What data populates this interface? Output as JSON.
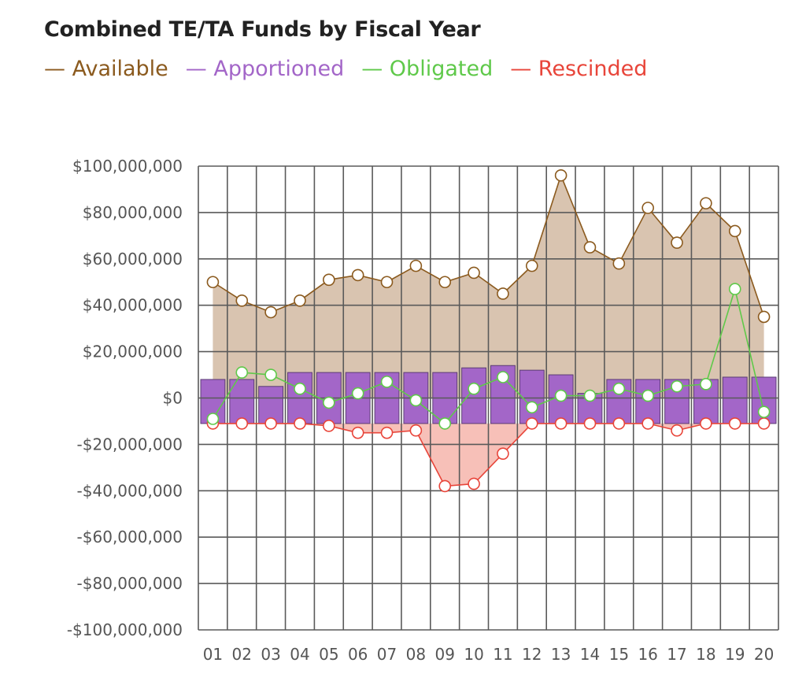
{
  "chart_data": {
    "type": "bar+line+area",
    "title": "Combined TE/TA Funds by Fiscal Year",
    "xlabel": "",
    "ylabel": "",
    "ylim": [
      -100000000,
      100000000
    ],
    "categories": [
      "01",
      "02",
      "03",
      "04",
      "05",
      "06",
      "07",
      "08",
      "09",
      "10",
      "11",
      "12",
      "13",
      "14",
      "15",
      "16",
      "17",
      "18",
      "19",
      "20"
    ],
    "y_ticks": [
      {
        "value": 100000000,
        "label": "$100,000,000"
      },
      {
        "value": 80000000,
        "label": "$80,000,000"
      },
      {
        "value": 60000000,
        "label": "$60,000,000"
      },
      {
        "value": 40000000,
        "label": "$40,000,000"
      },
      {
        "value": 20000000,
        "label": "$20,000,000"
      },
      {
        "value": 0,
        "label": "$0"
      },
      {
        "value": -20000000,
        "label": "-$20,000,000"
      },
      {
        "value": -40000000,
        "label": "-$40,000,000"
      },
      {
        "value": -60000000,
        "label": "-$60,000,000"
      },
      {
        "value": -80000000,
        "label": "-$80,000,000"
      },
      {
        "value": -100000000,
        "label": "-$100,000,000"
      }
    ],
    "bar_baseline": -11000000,
    "series": [
      {
        "name": "Available",
        "kind": "area-line",
        "color": "#8b5a1e",
        "fill": "#d9c4b0",
        "values": [
          50000000,
          42000000,
          37000000,
          42000000,
          51000000,
          53000000,
          50000000,
          57000000,
          50000000,
          54000000,
          45000000,
          57000000,
          96000000,
          65000000,
          58000000,
          82000000,
          67000000,
          84000000,
          72000000,
          35000000
        ]
      },
      {
        "name": "Apportioned",
        "kind": "bar",
        "color": "#a366c8",
        "values": [
          8000000,
          8000000,
          5000000,
          11000000,
          11000000,
          11000000,
          11000000,
          11000000,
          11000000,
          13000000,
          14000000,
          12000000,
          10000000,
          2000000,
          8000000,
          8000000,
          8000000,
          8000000,
          9000000,
          9000000
        ]
      },
      {
        "name": "Obligated",
        "kind": "line",
        "color": "#5fc94a",
        "values": [
          -9000000,
          11000000,
          10000000,
          4000000,
          -2000000,
          2000000,
          7000000,
          -1000000,
          -11000000,
          4000000,
          9000000,
          -4000000,
          1000000,
          1000000,
          4000000,
          1000000,
          5000000,
          6000000,
          47000000,
          -6000000
        ]
      },
      {
        "name": "Rescinded",
        "kind": "area-line",
        "color": "#e8453a",
        "fill": "#f7c0b8",
        "values": [
          -11000000,
          -11000000,
          -11000000,
          -11000000,
          -12000000,
          -15000000,
          -15000000,
          -14000000,
          -38000000,
          -37000000,
          -24000000,
          -11000000,
          -11000000,
          -11000000,
          -11000000,
          -11000000,
          -14000000,
          -11000000,
          -11000000,
          -11000000
        ]
      }
    ]
  },
  "legend": [
    {
      "label": "— Available",
      "color": "#8b5a1e"
    },
    {
      "label": "— Apportioned",
      "color": "#a366c8"
    },
    {
      "label": "— Obligated",
      "color": "#5fc94a"
    },
    {
      "label": "— Rescinded",
      "color": "#e8453a"
    }
  ]
}
